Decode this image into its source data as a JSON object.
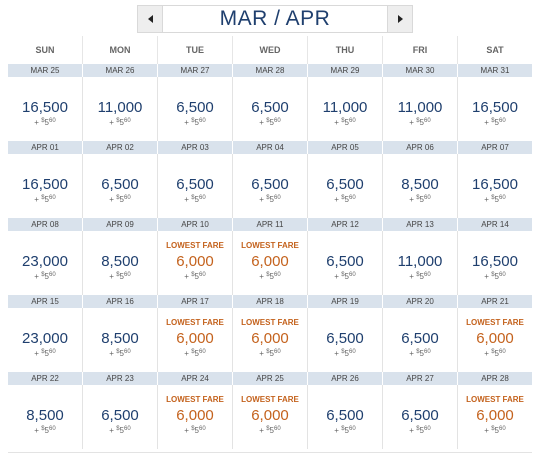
{
  "nav": {
    "month_label": "MAR / APR"
  },
  "weekdays": [
    "SUN",
    "MON",
    "TUE",
    "WED",
    "THU",
    "FRI",
    "SAT"
  ],
  "lowest_label": "LOWEST FARE",
  "tax": {
    "plus": "+",
    "dollar": "$",
    "whole": "5",
    "cents": "60"
  },
  "colors": {
    "fare": "#1f3f6e",
    "lowest": "#c4621d",
    "date_band": "#d9e2ec"
  },
  "weeks": [
    {
      "days": [
        {
          "date": "MAR 25",
          "fare": "16,500",
          "lowest": false
        },
        {
          "date": "MAR 26",
          "fare": "11,000",
          "lowest": false
        },
        {
          "date": "MAR 27",
          "fare": "6,500",
          "lowest": false
        },
        {
          "date": "MAR 28",
          "fare": "6,500",
          "lowest": false
        },
        {
          "date": "MAR 29",
          "fare": "11,000",
          "lowest": false
        },
        {
          "date": "MAR 30",
          "fare": "11,000",
          "lowest": false
        },
        {
          "date": "MAR 31",
          "fare": "16,500",
          "lowest": false
        }
      ]
    },
    {
      "days": [
        {
          "date": "APR 01",
          "fare": "16,500",
          "lowest": false
        },
        {
          "date": "APR 02",
          "fare": "6,500",
          "lowest": false
        },
        {
          "date": "APR 03",
          "fare": "6,500",
          "lowest": false
        },
        {
          "date": "APR 04",
          "fare": "6,500",
          "lowest": false
        },
        {
          "date": "APR 05",
          "fare": "6,500",
          "lowest": false
        },
        {
          "date": "APR 06",
          "fare": "8,500",
          "lowest": false
        },
        {
          "date": "APR 07",
          "fare": "16,500",
          "lowest": false
        }
      ]
    },
    {
      "days": [
        {
          "date": "APR 08",
          "fare": "23,000",
          "lowest": false
        },
        {
          "date": "APR 09",
          "fare": "8,500",
          "lowest": false
        },
        {
          "date": "APR 10",
          "fare": "6,000",
          "lowest": true
        },
        {
          "date": "APR 11",
          "fare": "6,000",
          "lowest": true
        },
        {
          "date": "APR 12",
          "fare": "6,500",
          "lowest": false
        },
        {
          "date": "APR 13",
          "fare": "11,000",
          "lowest": false
        },
        {
          "date": "APR 14",
          "fare": "16,500",
          "lowest": false
        }
      ]
    },
    {
      "days": [
        {
          "date": "APR 15",
          "fare": "23,000",
          "lowest": false
        },
        {
          "date": "APR 16",
          "fare": "8,500",
          "lowest": false
        },
        {
          "date": "APR 17",
          "fare": "6,000",
          "lowest": true
        },
        {
          "date": "APR 18",
          "fare": "6,000",
          "lowest": true
        },
        {
          "date": "APR 19",
          "fare": "6,500",
          "lowest": false
        },
        {
          "date": "APR 20",
          "fare": "6,500",
          "lowest": false
        },
        {
          "date": "APR 21",
          "fare": "6,000",
          "lowest": true
        }
      ]
    },
    {
      "days": [
        {
          "date": "APR 22",
          "fare": "8,500",
          "lowest": false
        },
        {
          "date": "APR 23",
          "fare": "6,500",
          "lowest": false
        },
        {
          "date": "APR 24",
          "fare": "6,000",
          "lowest": true
        },
        {
          "date": "APR 25",
          "fare": "6,000",
          "lowest": true
        },
        {
          "date": "APR 26",
          "fare": "6,500",
          "lowest": false
        },
        {
          "date": "APR 27",
          "fare": "6,500",
          "lowest": false
        },
        {
          "date": "APR 28",
          "fare": "6,000",
          "lowest": true
        }
      ]
    }
  ]
}
